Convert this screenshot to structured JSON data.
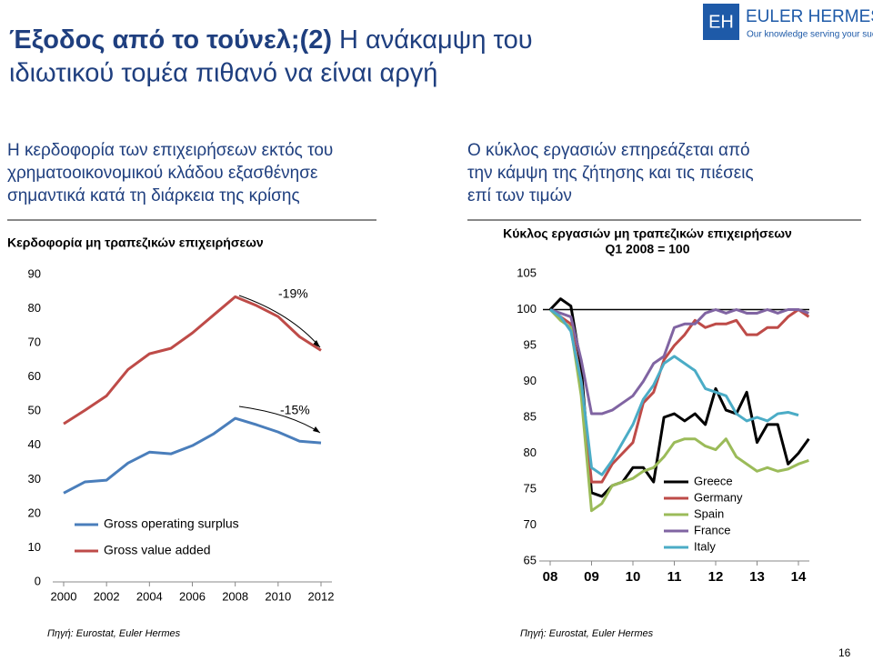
{
  "slide": {
    "title_bold": "Έξοδος από το τούνελ;(2)",
    "title_rest": "Η ανάκαμψη του",
    "title_line2": "ιδιωτικού τομέα πιθανό να είναι αργή",
    "logo_text": "EULER HERMES",
    "logo_tagline": "Our knowledge serving your success",
    "logo_mark": "EH",
    "page_number": "16"
  },
  "chart_data": [
    {
      "type": "line",
      "heading": [
        "Η κερδοφορία των επιχειρήσεων εκτός του",
        "χρηματοοικονομικού κλάδου εξασθένησε",
        "σημαντικά κατά τη διάρκεια της κρίσης"
      ],
      "title": "Κερδοφορία μη τραπεζικών επιχειρήσεων",
      "source": "Πηγή: Eurostat, Euler Hermes",
      "x": [
        2000,
        2001,
        2002,
        2003,
        2004,
        2005,
        2006,
        2007,
        2008,
        2009,
        2010,
        2011,
        2012
      ],
      "xlim": [
        2000,
        2012
      ],
      "xticks": [
        2000,
        2002,
        2004,
        2006,
        2008,
        2010,
        2012
      ],
      "ylim": [
        0,
        90
      ],
      "yticks": [
        0,
        10,
        20,
        30,
        40,
        50,
        60,
        70,
        80,
        90
      ],
      "series": [
        {
          "name": "Gross operating surplus",
          "color": "#4a7ebb",
          "values": [
            26,
            29.3,
            29.8,
            34.8,
            38,
            37.5,
            39.9,
            43.4,
            47.9,
            46,
            43.9,
            41.2,
            40.7
          ]
        },
        {
          "name": "Gross value added",
          "color": "#be4b48",
          "values": [
            46.3,
            50.3,
            54.5,
            62.2,
            66.8,
            68.4,
            72.9,
            78.2,
            83.5,
            80.9,
            77.7,
            71.8,
            67.8
          ]
        }
      ],
      "annotations": [
        "-19%",
        "-15%"
      ]
    },
    {
      "type": "line",
      "heading": [
        "Ο κύκλος εργασιών επηρεάζεται από",
        "την κάμψη της ζήτησης και τις πιέσεις",
        "επί των τιμών"
      ],
      "title": [
        "Κύκλος εργασιών μη τραπεζικών επιχειρήσεων",
        "Q1 2008 = 100"
      ],
      "source": "Πηγή: Eurostat, Euler Hermes",
      "x": [
        2008,
        2008.25,
        2008.5,
        2008.75,
        2009,
        2009.25,
        2009.5,
        2009.75,
        2010,
        2010.25,
        2010.5,
        2010.75,
        2011,
        2011.25,
        2011.5,
        2011.75,
        2012,
        2012.25,
        2012.5,
        2012.75,
        2013,
        2013.25,
        2013.5,
        2013.75,
        2014,
        2014.25
      ],
      "xlim": [
        2008,
        2014
      ],
      "xticks": [
        {
          "value": 2008,
          "label": "08"
        },
        {
          "value": 2009,
          "label": "09"
        },
        {
          "value": 2010,
          "label": "10"
        },
        {
          "value": 2011,
          "label": "11"
        },
        {
          "value": 2012,
          "label": "12"
        },
        {
          "value": 2013,
          "label": "13"
        },
        {
          "value": 2014,
          "label": "14"
        }
      ],
      "ylim": [
        65,
        105
      ],
      "yticks": [
        65,
        70,
        75,
        80,
        85,
        90,
        95,
        100,
        105
      ],
      "reference_line": 100,
      "series": [
        {
          "name": "Greece",
          "color": "#000000",
          "values": [
            100,
            101.5,
            100.5,
            92,
            74.5,
            74,
            75.5,
            76,
            78,
            78,
            76,
            85,
            85.5,
            84.5,
            85.5,
            84,
            89,
            86,
            85.5,
            88.5,
            81.5,
            84,
            84,
            78.5,
            80,
            82
          ]
        },
        {
          "name": "Germany",
          "color": "#be4b48",
          "values": [
            100,
            99,
            98,
            90,
            76,
            76,
            78.5,
            80,
            81.5,
            87,
            88.5,
            93,
            95,
            96.5,
            98.5,
            97.5,
            98,
            98,
            98.5,
            96.5,
            96.5,
            97.5,
            97.5,
            99,
            100,
            99
          ]
        },
        {
          "name": "Spain",
          "color": "#9bbb59",
          "values": [
            100,
            98.5,
            97.5,
            88,
            72,
            73,
            75.5,
            76,
            76.5,
            77.5,
            78,
            79.5,
            81.5,
            82,
            82,
            81,
            80.5,
            82,
            79.5,
            78.5,
            77.5,
            78,
            77.5,
            77.8,
            78.5,
            79
          ]
        },
        {
          "name": "France",
          "color": "#8064a2",
          "values": [
            100,
            99.5,
            99,
            93,
            85.5,
            85.5,
            86,
            87,
            88,
            90,
            92.5,
            93.5,
            97.5,
            98,
            98,
            99.5,
            100,
            99.5,
            100,
            99.5,
            99.5,
            100,
            99.5,
            100,
            100,
            99.5
          ]
        },
        {
          "name": "Italy",
          "color": "#4bacc6",
          "values": [
            100,
            99,
            97,
            90,
            78,
            77,
            79,
            81.5,
            84,
            87.5,
            89.5,
            92.5,
            93.5,
            92.5,
            91.5,
            89,
            88.5,
            88,
            85.5,
            84.5,
            85,
            84.5,
            85.5,
            85.7,
            85.3,
            null
          ]
        }
      ]
    }
  ]
}
